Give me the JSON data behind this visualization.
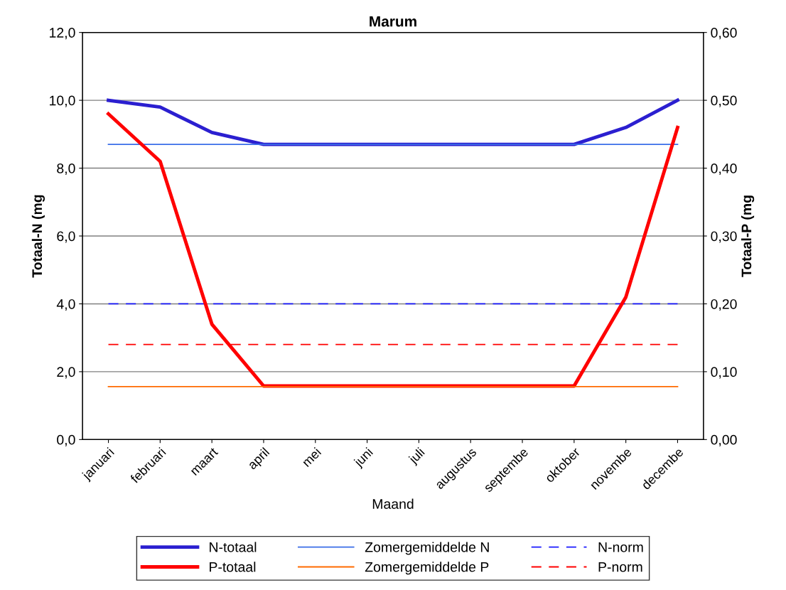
{
  "chart_data": {
    "type": "line",
    "title": "Marum",
    "xlabel": "Maand",
    "ylabel": "Totaal-N (mg",
    "y2label": "Totaal-P (mg",
    "categories": [
      "januari",
      "februari",
      "maart",
      "april",
      "mei",
      "juni",
      "juli",
      "augustus",
      "septembe",
      "oktober",
      "novembe",
      "decembe"
    ],
    "series": [
      {
        "name": "N-totaal",
        "color": "#2b1fd0",
        "values": [
          10.0,
          9.8,
          9.05,
          8.7,
          8.7,
          8.7,
          8.7,
          8.7,
          8.7,
          8.7,
          9.2,
          10.0
        ]
      },
      {
        "name": "P-totaal",
        "color": "#ff0000",
        "axis": "y2",
        "values": [
          0.48,
          0.41,
          0.17,
          0.079,
          0.079,
          0.079,
          0.079,
          0.079,
          0.079,
          0.079,
          0.21,
          0.46
        ]
      },
      {
        "name": "Zomergemiddelde N",
        "color": "#3a6ee8",
        "values": [
          8.7,
          8.7,
          8.7,
          8.7,
          8.7,
          8.7,
          8.7,
          8.7,
          8.7,
          8.7,
          8.7,
          8.7
        ]
      },
      {
        "name": "Zomergemiddelde P",
        "color": "#ff6a00",
        "axis": "y2",
        "values": [
          0.078,
          0.078,
          0.078,
          0.078,
          0.078,
          0.078,
          0.078,
          0.078,
          0.078,
          0.078,
          0.078,
          0.078
        ]
      },
      {
        "name": "N-norm",
        "color": "#1a1aff",
        "line_style": "dashed",
        "values": [
          4.0,
          4.0,
          4.0,
          4.0,
          4.0,
          4.0,
          4.0,
          4.0,
          4.0,
          4.0,
          4.0,
          4.0
        ]
      },
      {
        "name": "P-norm",
        "color": "#ff0000",
        "axis": "y2",
        "line_style": "dashed",
        "values": [
          0.14,
          0.14,
          0.14,
          0.14,
          0.14,
          0.14,
          0.14,
          0.14,
          0.14,
          0.14,
          0.14,
          0.14
        ]
      }
    ],
    "ylim": [
      0,
      12
    ],
    "yticks": [
      {
        "value": 0,
        "label": "0,0"
      },
      {
        "value": 2,
        "label": "2,0"
      },
      {
        "value": 4,
        "label": "4,0"
      },
      {
        "value": 6,
        "label": "6,0"
      },
      {
        "value": 8,
        "label": "8,0"
      },
      {
        "value": 10,
        "label": "10,0"
      },
      {
        "value": 12,
        "label": "12,0"
      }
    ],
    "y2lim": [
      0,
      0.6
    ],
    "y2ticks": [
      {
        "value": 0,
        "label": "0,00"
      },
      {
        "value": 0.1,
        "label": "0,10"
      },
      {
        "value": 0.2,
        "label": "0,20"
      },
      {
        "value": 0.3,
        "label": "0,30"
      },
      {
        "value": 0.4,
        "label": "0,40"
      },
      {
        "value": 0.5,
        "label": "0,50"
      },
      {
        "value": 0.6,
        "label": "0,60"
      }
    ],
    "grid": "y",
    "legend": "bottom",
    "marker": "none",
    "line_style": "solid"
  }
}
